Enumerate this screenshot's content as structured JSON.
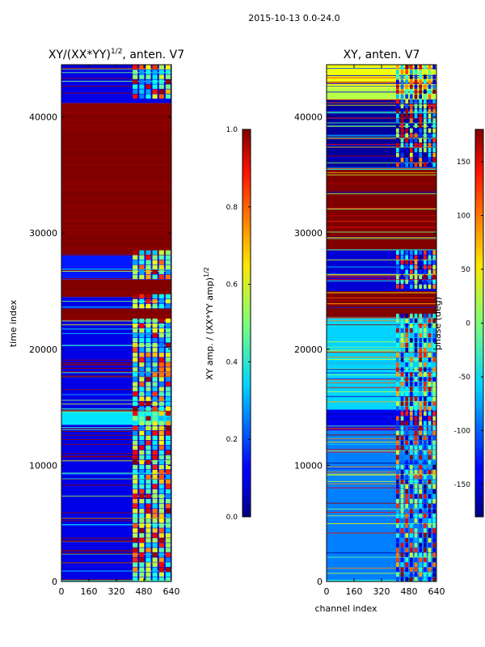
{
  "figure": {
    "suptitle": "2015-10-13 0.0-24.0",
    "colors": {
      "dark_red": "#7f0000",
      "dark_blue": "#00007f",
      "blue": "#0000ff",
      "cyan": "#00e5ff",
      "green": "#7fff7f",
      "yellow": "#ffe600",
      "red": "#ff1c00"
    }
  },
  "chart_data": [
    {
      "type": "heatmap",
      "title": "XY/(XX*YY)",
      "title_superscript": "1/2",
      "title_suffix": ", anten. V7",
      "xlabel": "",
      "ylabel": "time index",
      "xlim": [
        0,
        640
      ],
      "ylim": [
        0,
        44500
      ],
      "xticks": [
        "0",
        "160",
        "320",
        "480",
        "640"
      ],
      "yticks": [
        "0",
        "10000",
        "20000",
        "30000",
        "40000"
      ],
      "colormap": "jet",
      "colorbar": {
        "label": "XY amp. / (XX*YY amp)",
        "label_superscript": "1/2",
        "range": [
          0.0,
          1.0
        ],
        "ticks": [
          "0.0",
          "0.2",
          "0.4",
          "0.6",
          "0.8",
          "1.0"
        ]
      },
      "bands": [
        {
          "y0": 0,
          "y1": 13500,
          "value": 0.1
        },
        {
          "y0": 13500,
          "y1": 14800,
          "value": 0.35
        },
        {
          "y0": 14800,
          "y1": 22500,
          "value": 0.1
        },
        {
          "y0": 22500,
          "y1": 23500,
          "value": 1.0
        },
        {
          "y0": 23500,
          "y1": 24500,
          "value": 0.1
        },
        {
          "y0": 24500,
          "y1": 26000,
          "value": 1.0
        },
        {
          "y0": 26000,
          "y1": 28200,
          "value": 0.15
        },
        {
          "y0": 28200,
          "y1": 41200,
          "value": 1.0
        },
        {
          "y0": 41200,
          "y1": 44500,
          "value": 0.1
        }
      ],
      "active_channels": [
        410,
        640
      ]
    },
    {
      "type": "heatmap",
      "title": "XY, anten. V7",
      "xlabel": "channel index",
      "ylabel": "",
      "xlim": [
        0,
        640
      ],
      "ylim": [
        0,
        44500
      ],
      "xticks": [
        "0",
        "160",
        "320",
        "480",
        "640"
      ],
      "yticks": [
        "0",
        "10000",
        "20000",
        "30000",
        "40000"
      ],
      "colormap": "jet",
      "colorbar": {
        "label": "phase (deg)",
        "range": [
          -180,
          180
        ],
        "ticks": [
          "-150",
          "-100",
          "-50",
          "0",
          "50",
          "100",
          "150"
        ]
      },
      "bands": [
        {
          "y0": 0,
          "y1": 13000,
          "value": -90
        },
        {
          "y0": 13000,
          "y1": 14800,
          "value": -140
        },
        {
          "y0": 14800,
          "y1": 22800,
          "value": -60
        },
        {
          "y0": 22800,
          "y1": 25000,
          "value": 180
        },
        {
          "y0": 25000,
          "y1": 28500,
          "value": -150
        },
        {
          "y0": 28500,
          "y1": 35500,
          "value": 180
        },
        {
          "y0": 35500,
          "y1": 41500,
          "value": -170
        },
        {
          "y0": 41500,
          "y1": 42500,
          "value": 20
        },
        {
          "y0": 42500,
          "y1": 44500,
          "value": 40
        }
      ],
      "active_channels": [
        400,
        640
      ]
    }
  ]
}
